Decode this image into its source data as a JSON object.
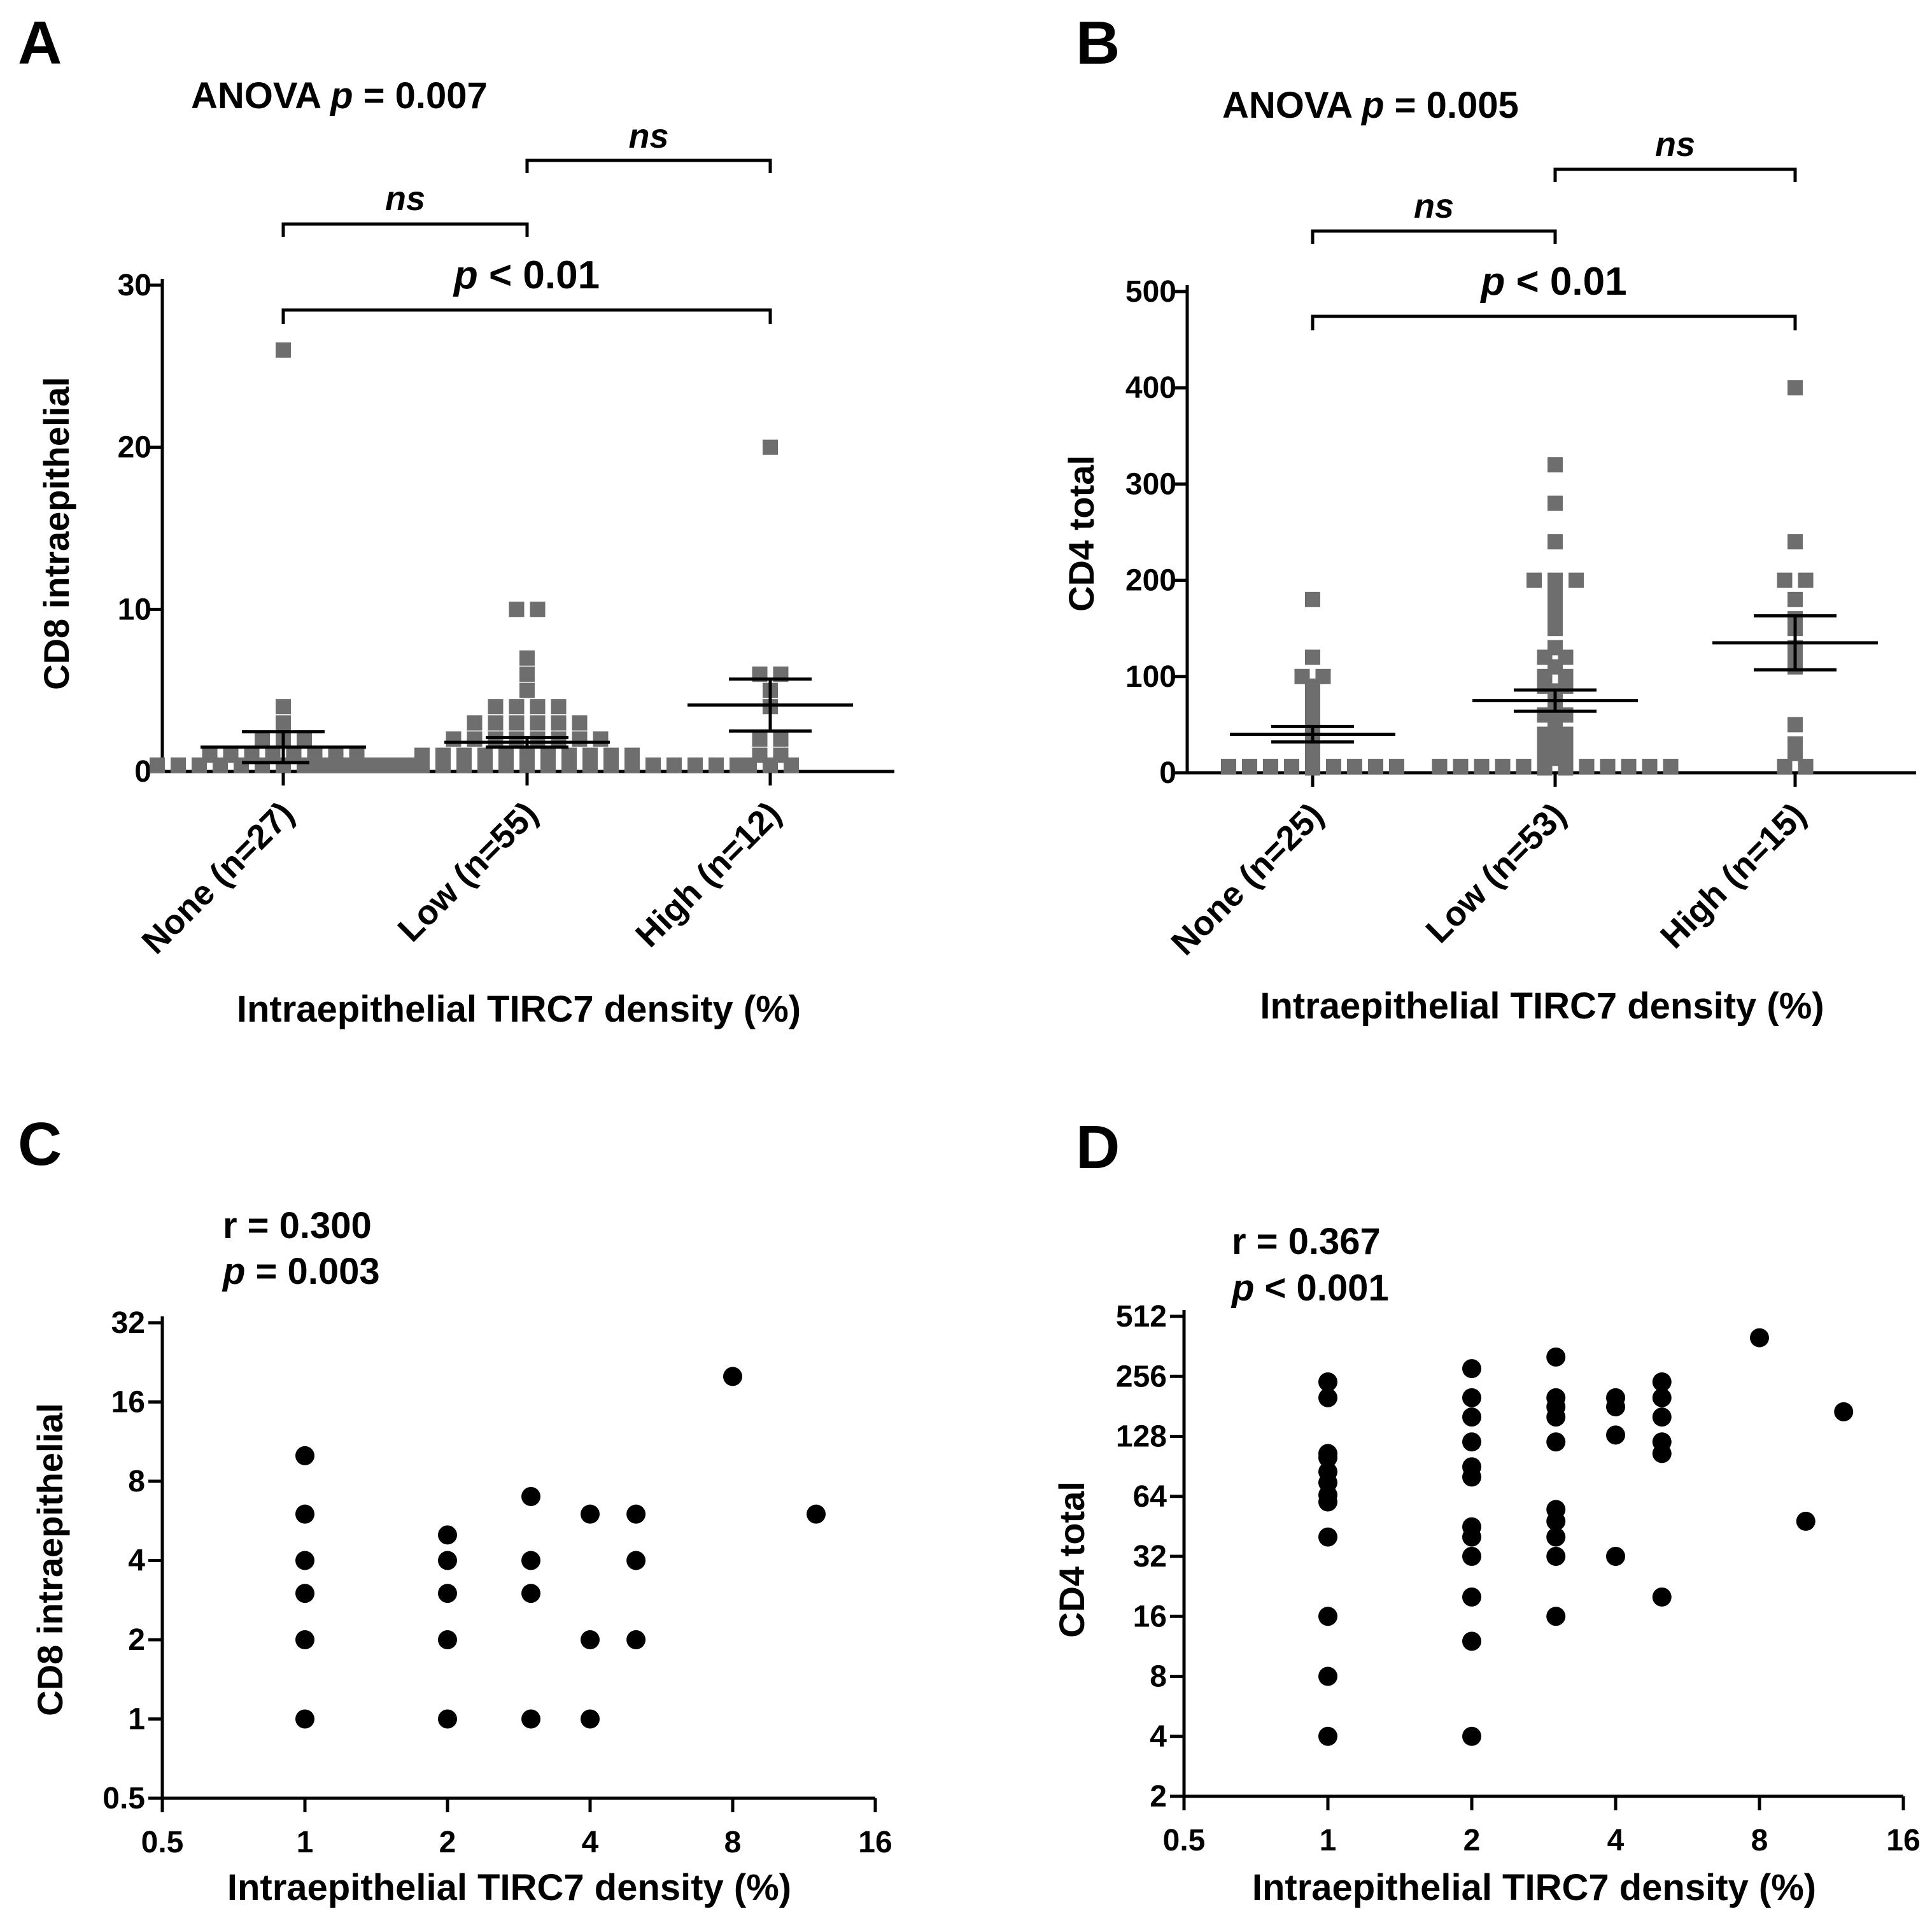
{
  "chart_data": [
    {
      "id": "A",
      "panel_label": "A",
      "type": "scatter",
      "subtype": "dot-plot-mean-sem",
      "ylabel": "CD8 intraepithelial",
      "xlabel": "Intraepithelial  TIRC7 density (%)",
      "ylim": [
        0,
        30
      ],
      "yticks": [
        "0",
        "10",
        "20",
        "30"
      ],
      "categories": [
        "None (n=27)",
        "Low (n=55)",
        "High (n=12)"
      ],
      "anova": {
        "prefix": "ANOVA",
        "p": "p",
        "rest": " = 0.007"
      },
      "comparisons": [
        {
          "from": 0,
          "to": 1,
          "label": "ns",
          "italic": true
        },
        {
          "from": 1,
          "to": 2,
          "label": "ns",
          "italic": true
        },
        {
          "from": 0,
          "to": 2,
          "p": "p",
          "rest": " < 0.01"
        }
      ],
      "groups": [
        {
          "name": "None (n=27)",
          "mean": 1.5,
          "sem": 0.95,
          "values": [
            0,
            0,
            0,
            0,
            0,
            0,
            0,
            0,
            0,
            0,
            0,
            0,
            0,
            1,
            1,
            1,
            1,
            1,
            1,
            1,
            1,
            2,
            2,
            2,
            3,
            4,
            26
          ]
        },
        {
          "name": "Low (n=55)",
          "mean": 1.8,
          "sem": 0.3,
          "values": [
            0,
            0,
            0,
            0,
            0,
            0,
            0,
            0,
            0,
            0,
            0,
            0,
            0,
            0,
            0,
            0,
            0,
            0,
            0,
            0,
            0,
            1,
            1,
            1,
            1,
            1,
            1,
            1,
            1,
            1,
            1,
            1,
            2,
            2,
            2,
            2,
            2,
            2,
            2,
            2,
            3,
            3,
            3,
            3,
            3,
            3,
            4,
            4,
            4,
            4,
            5,
            6,
            7,
            10,
            10
          ]
        },
        {
          "name": "High (n=12)",
          "mean": 4.1,
          "sem": 1.6,
          "values": [
            0,
            0,
            0,
            1,
            1,
            2,
            2,
            4,
            5,
            6,
            6,
            20
          ]
        }
      ]
    },
    {
      "id": "B",
      "panel_label": "B",
      "type": "scatter",
      "subtype": "dot-plot-mean-sem",
      "ylabel": "CD4 total",
      "xlabel": "Intraepithelial  TIRC7 density (%)",
      "ylim": [
        0,
        500
      ],
      "yticks": [
        "0",
        "100",
        "200",
        "300",
        "400",
        "500"
      ],
      "categories": [
        "None (n=25)",
        "Low (n=53)",
        "High (n=15)"
      ],
      "anova": {
        "prefix": "ANOVA",
        "p": "p",
        "rest": " = 0.005"
      },
      "comparisons": [
        {
          "from": 0,
          "to": 1,
          "label": "ns",
          "italic": true
        },
        {
          "from": 1,
          "to": 2,
          "label": "ns",
          "italic": true
        },
        {
          "from": 0,
          "to": 2,
          "p": "p",
          "rest": " < 0.01"
        }
      ],
      "groups": [
        {
          "name": "None (n=25)",
          "mean": 40,
          "sem": 8,
          "values": [
            0,
            0,
            0,
            0,
            0,
            0,
            0,
            0,
            0,
            5,
            10,
            15,
            20,
            30,
            40,
            50,
            55,
            60,
            70,
            80,
            90,
            100,
            100,
            120,
            180
          ]
        },
        {
          "name": "Low (n=53)",
          "mean": 75,
          "sem": 11,
          "values": [
            0,
            0,
            0,
            0,
            0,
            0,
            0,
            0,
            0,
            0,
            0,
            0,
            5,
            5,
            10,
            10,
            15,
            20,
            20,
            25,
            30,
            30,
            35,
            40,
            40,
            45,
            50,
            55,
            60,
            60,
            65,
            70,
            75,
            80,
            85,
            90,
            90,
            100,
            100,
            110,
            120,
            120,
            130,
            150,
            160,
            170,
            185,
            200,
            200,
            200,
            240,
            280,
            320
          ]
        },
        {
          "name": "High (n=15)",
          "mean": 135,
          "sem": 28,
          "values": [
            0,
            0,
            20,
            30,
            50,
            110,
            120,
            130,
            150,
            160,
            180,
            200,
            200,
            240,
            400
          ]
        }
      ]
    },
    {
      "id": "C",
      "panel_label": "C",
      "type": "scatter",
      "xscale": "log2",
      "yscale": "log2",
      "ylabel": "CD8 intraepithelial",
      "xlabel": "Intraepithelial  TIRC7 density (%)",
      "xlim": [
        0.5,
        16
      ],
      "ylim": [
        0.5,
        32
      ],
      "xticks": [
        "0.5",
        "1",
        "2",
        "4",
        "8",
        "16"
      ],
      "yticks": [
        "0.5",
        "1",
        "2",
        "4",
        "8",
        "16",
        "32"
      ],
      "stat_r": "r = 0.300",
      "stat_p": {
        "p": "p",
        "rest": " = 0.003"
      },
      "points": [
        {
          "x": 1,
          "y": 1
        },
        {
          "x": 1,
          "y": 2
        },
        {
          "x": 1,
          "y": 3
        },
        {
          "x": 1,
          "y": 4
        },
        {
          "x": 1,
          "y": 6
        },
        {
          "x": 1,
          "y": 10
        },
        {
          "x": 2,
          "y": 1
        },
        {
          "x": 2,
          "y": 2
        },
        {
          "x": 2,
          "y": 3
        },
        {
          "x": 2,
          "y": 4
        },
        {
          "x": 2,
          "y": 5
        },
        {
          "x": 3,
          "y": 1
        },
        {
          "x": 3,
          "y": 3
        },
        {
          "x": 3,
          "y": 4
        },
        {
          "x": 3,
          "y": 7
        },
        {
          "x": 4,
          "y": 1
        },
        {
          "x": 4,
          "y": 2
        },
        {
          "x": 4,
          "y": 6
        },
        {
          "x": 5,
          "y": 2
        },
        {
          "x": 5,
          "y": 4
        },
        {
          "x": 5,
          "y": 6
        },
        {
          "x": 8,
          "y": 20
        },
        {
          "x": 12,
          "y": 6
        }
      ]
    },
    {
      "id": "D",
      "panel_label": "D",
      "type": "scatter",
      "xscale": "log2",
      "yscale": "log2",
      "ylabel": "CD4 total",
      "xlabel": "Intraepithelial  TIRC7 density (%)",
      "xlim": [
        0.5,
        16
      ],
      "ylim": [
        2,
        512
      ],
      "xticks": [
        "0.5",
        "1",
        "2",
        "4",
        "8",
        "16"
      ],
      "yticks": [
        "2",
        "4",
        "8",
        "16",
        "32",
        "64",
        "128",
        "256",
        "512"
      ],
      "stat_r": "r = 0.367",
      "stat_p": {
        "p": "p",
        "rest": " < 0.001"
      },
      "points": [
        {
          "x": 1,
          "y": 4
        },
        {
          "x": 1,
          "y": 8
        },
        {
          "x": 1,
          "y": 16
        },
        {
          "x": 1,
          "y": 40
        },
        {
          "x": 1,
          "y": 60
        },
        {
          "x": 1,
          "y": 65
        },
        {
          "x": 1,
          "y": 75
        },
        {
          "x": 1,
          "y": 85
        },
        {
          "x": 1,
          "y": 100
        },
        {
          "x": 1,
          "y": 105
        },
        {
          "x": 1,
          "y": 200
        },
        {
          "x": 1,
          "y": 240
        },
        {
          "x": 2,
          "y": 4
        },
        {
          "x": 2,
          "y": 12
        },
        {
          "x": 2,
          "y": 20
        },
        {
          "x": 2,
          "y": 32
        },
        {
          "x": 2,
          "y": 40
        },
        {
          "x": 2,
          "y": 45
        },
        {
          "x": 2,
          "y": 80
        },
        {
          "x": 2,
          "y": 90
        },
        {
          "x": 2,
          "y": 120
        },
        {
          "x": 2,
          "y": 160
        },
        {
          "x": 2,
          "y": 200
        },
        {
          "x": 2,
          "y": 280
        },
        {
          "x": 3,
          "y": 16
        },
        {
          "x": 3,
          "y": 32
        },
        {
          "x": 3,
          "y": 40
        },
        {
          "x": 3,
          "y": 48
        },
        {
          "x": 3,
          "y": 55
        },
        {
          "x": 3,
          "y": 120
        },
        {
          "x": 3,
          "y": 160
        },
        {
          "x": 3,
          "y": 180
        },
        {
          "x": 3,
          "y": 200
        },
        {
          "x": 3,
          "y": 320
        },
        {
          "x": 4,
          "y": 32
        },
        {
          "x": 4,
          "y": 130
        },
        {
          "x": 4,
          "y": 180
        },
        {
          "x": 4,
          "y": 200
        },
        {
          "x": 5,
          "y": 20
        },
        {
          "x": 5,
          "y": 105
        },
        {
          "x": 5,
          "y": 120
        },
        {
          "x": 5,
          "y": 160
        },
        {
          "x": 5,
          "y": 200
        },
        {
          "x": 5,
          "y": 240
        },
        {
          "x": 8,
          "y": 400
        },
        {
          "x": 10,
          "y": 48
        },
        {
          "x": 12,
          "y": 170
        }
      ]
    }
  ]
}
